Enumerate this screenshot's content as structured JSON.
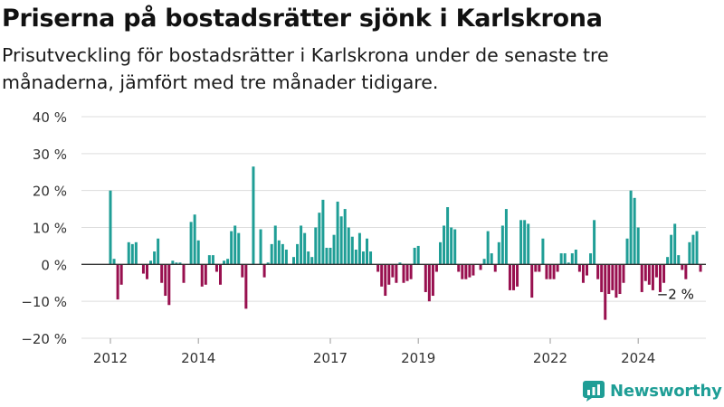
{
  "header": {
    "title": "Priserna på bostadsrätter sjönk i Karlskrona",
    "subtitle": "Prisutveckling för bostadsrätter i Karlskrona under de senaste tre månaderna, jämfört med tre månader tidigare."
  },
  "brand": {
    "name": "Newsworthy",
    "color": "#1f9e96"
  },
  "colors": {
    "positive": "#1f9e96",
    "negative": "#98104f",
    "grid": "#dddddd",
    "axis": "#333333"
  },
  "chart_data": {
    "type": "bar",
    "title": "",
    "xlabel": "",
    "ylabel": "",
    "ylim": [
      -20,
      40
    ],
    "y_ticks": [
      -20,
      -10,
      0,
      10,
      20,
      30,
      40
    ],
    "y_tick_labels": [
      "−20 %",
      "−10 %",
      "0 %",
      "10 %",
      "20 %",
      "30 %",
      "40 %"
    ],
    "x_start": "2012-01",
    "x_end": "2024-11",
    "x_ticks": [
      "2012-01",
      "2014-01",
      "2017-01",
      "2019-01",
      "2022-01",
      "2024-01"
    ],
    "x_tick_labels": [
      "2012",
      "2014",
      "2017",
      "2019",
      "2022",
      "2024"
    ],
    "grid": true,
    "annotation": {
      "label": "−2 %",
      "x": "2024-11",
      "y": -2
    },
    "series": [
      {
        "values": [
          20,
          1.5,
          -9.5,
          -5.5,
          0,
          6,
          5.5,
          6,
          0,
          -2.5,
          -4,
          1,
          3.5,
          7,
          -5,
          -8.5,
          -11,
          1,
          0.5,
          0.5,
          -5,
          0,
          11.5,
          13.5,
          6.5,
          -6,
          -5.5,
          2.5,
          2.5,
          -2,
          -5.5,
          1,
          1.5,
          9,
          10.5,
          8.5,
          -3.5,
          -12,
          0,
          26.5,
          0,
          9.5,
          -3.5,
          0.5,
          5.5,
          10.5,
          6.5,
          5.5,
          4,
          0,
          2,
          5.5,
          10.5,
          8.5,
          3.5,
          2,
          10,
          14,
          17.5,
          4.5,
          4.5,
          8,
          17,
          13,
          15,
          10,
          7.5,
          4,
          8.5,
          3.5,
          7,
          3.5,
          0,
          -2,
          -6,
          -8.5,
          -5.5,
          -3.5,
          -5,
          0.5,
          -5,
          -4.5,
          -4,
          4.5,
          5,
          0,
          -7.5,
          -10,
          -8.5,
          -2,
          6,
          10.5,
          15.5,
          10,
          9.5,
          -2,
          -4,
          -4,
          -3.5,
          -3,
          0,
          -1.5,
          1.5,
          9,
          3,
          -2,
          6,
          10.5,
          15,
          -7,
          -7,
          -6,
          12,
          12,
          11,
          -9,
          -2,
          -2,
          7,
          -4,
          -4,
          -4,
          -2,
          3,
          3,
          0.5,
          3,
          4,
          -2,
          -5,
          -3,
          3,
          12,
          -4,
          -7.5,
          -15,
          -8,
          -7,
          -9,
          -8,
          -5,
          7,
          20,
          18,
          10,
          -7.5,
          -4.5,
          -5.5,
          -7,
          -3.5,
          -7.5,
          -5,
          2,
          8,
          11,
          2.5,
          -1.5,
          -4,
          6,
          8,
          9,
          -2
        ]
      }
    ]
  }
}
